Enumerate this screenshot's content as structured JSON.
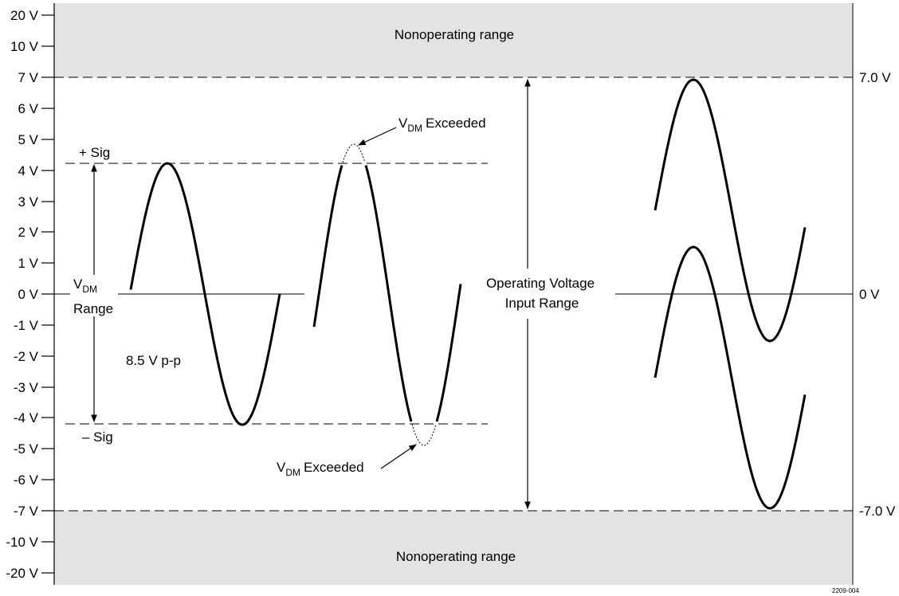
{
  "y_axis": {
    "ticks": [
      "20 V",
      "10 V",
      "7 V",
      "6 V",
      "5 V",
      "4 V",
      "3 V",
      "2 V",
      "1 V",
      "0 V",
      "-1 V",
      "-2 V",
      "-3 V",
      "-4 V",
      "-5 V",
      "-6 V",
      "-7 V",
      "-10 V",
      "-20 V"
    ]
  },
  "bands": {
    "top": "Nonoperating range",
    "bottom": "Nonoperating range"
  },
  "right_labels": {
    "top": "7.0 V",
    "mid": "0 V",
    "bottom": "-7.0 V"
  },
  "labels": {
    "plus_sig": "+ Sig",
    "minus_sig": "– Sig",
    "vdm_v": "V",
    "vdm_sub": "DM",
    "vdm_range": "Range",
    "pp": "8.5 V p-p",
    "exceeded_v": "V",
    "exceeded_sub": "DM",
    "exceeded_text": "Exceeded",
    "op_line1": "Operating Voltage",
    "op_line2": "Input Range",
    "figure_number": "2209-004"
  },
  "colors": {
    "band_fill": "#e3e3e3",
    "ink": "#000000"
  }
}
